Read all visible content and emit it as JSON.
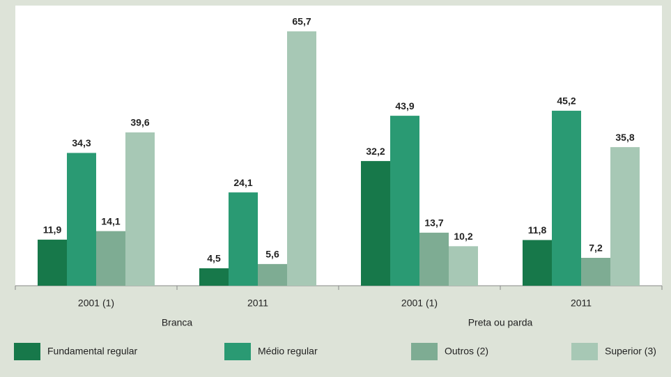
{
  "chart_data": {
    "type": "bar",
    "categories": [
      "2001 (1)",
      "2011",
      "2001 (1)",
      "2011"
    ],
    "group_labels": [
      "Branca",
      "Preta ou parda"
    ],
    "ylim": [
      0,
      72
    ],
    "series": [
      {
        "name": "Fundamental regular",
        "color": "#17784a",
        "values": [
          11.9,
          4.5,
          32.2,
          11.8
        ],
        "value_labels": [
          "11,9",
          "4,5",
          "32,2",
          "11,8"
        ]
      },
      {
        "name": "Médio regular",
        "color": "#2a9a73",
        "values": [
          34.3,
          24.1,
          43.9,
          45.2
        ],
        "value_labels": [
          "34,3",
          "24,1",
          "43,9",
          "45,2"
        ]
      },
      {
        "name": "Outros (2)",
        "color": "#7eac93",
        "values": [
          14.1,
          5.6,
          13.7,
          7.2
        ],
        "value_labels": [
          "14,1",
          "5,6",
          "13,7",
          "7,2"
        ]
      },
      {
        "name": "Superior (3)",
        "color": "#a7c8b5",
        "values": [
          39.6,
          65.7,
          10.2,
          35.8
        ],
        "value_labels": [
          "39,6",
          "65,7",
          "10,2",
          "35,8"
        ]
      }
    ]
  }
}
